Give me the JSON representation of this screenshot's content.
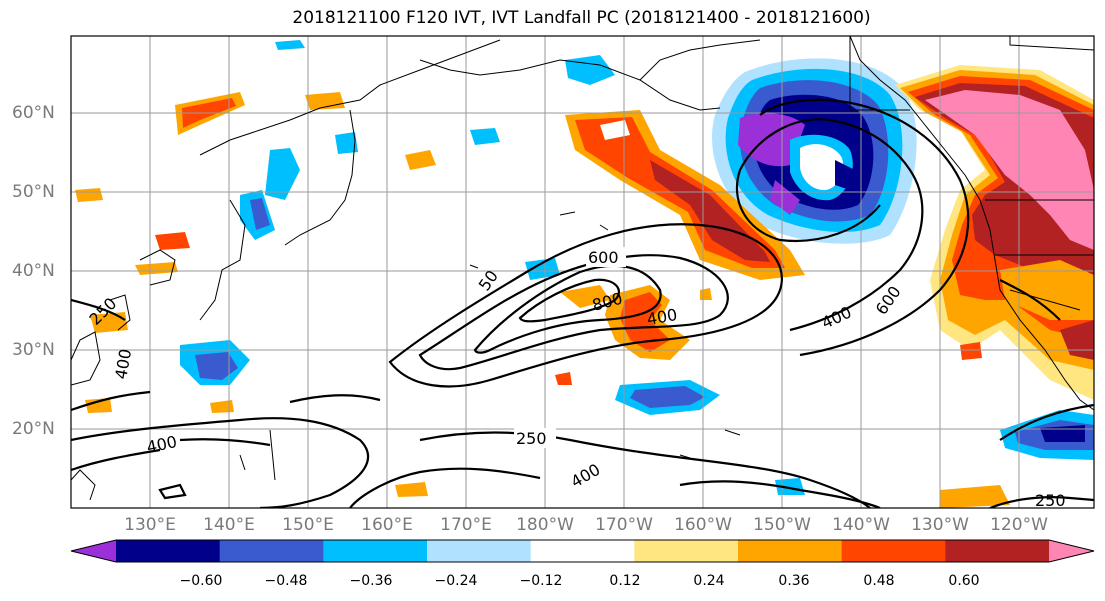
{
  "title": "2018121100 F120 IVT, IVT Landfall PC (2018121400 - 2018121600)",
  "lat_labels": [
    "60°N",
    "50°N",
    "40°N",
    "30°N",
    "20°N"
  ],
  "lon_labels": [
    "130°E",
    "140°E",
    "150°E",
    "160°E",
    "170°E",
    "180°W",
    "170°W",
    "160°W",
    "150°W",
    "140°W",
    "130°W",
    "120°W"
  ],
  "colorbar": {
    "ticks": [
      "−0.60",
      "−0.48",
      "−0.36",
      "−0.24",
      "−0.12",
      "0.12",
      "0.24",
      "0.36",
      "0.48",
      "0.60"
    ],
    "colors": [
      "#9b30d9",
      "#00008b",
      "#3a5bd0",
      "#00bfff",
      "#b0e2ff",
      "#ffffff",
      "#ffe680",
      "#ffa500",
      "#ff4500",
      "#b22222",
      "#ff85b4"
    ]
  },
  "contour_labels": [
    {
      "text": "600"
    },
    {
      "text": "800"
    },
    {
      "text": "400"
    },
    {
      "text": "50"
    },
    {
      "text": "400"
    },
    {
      "text": "600"
    },
    {
      "text": "400"
    },
    {
      "text": "400"
    },
    {
      "text": "250"
    },
    {
      "text": "400"
    },
    {
      "text": "250"
    },
    {
      "text": "250"
    }
  ]
}
